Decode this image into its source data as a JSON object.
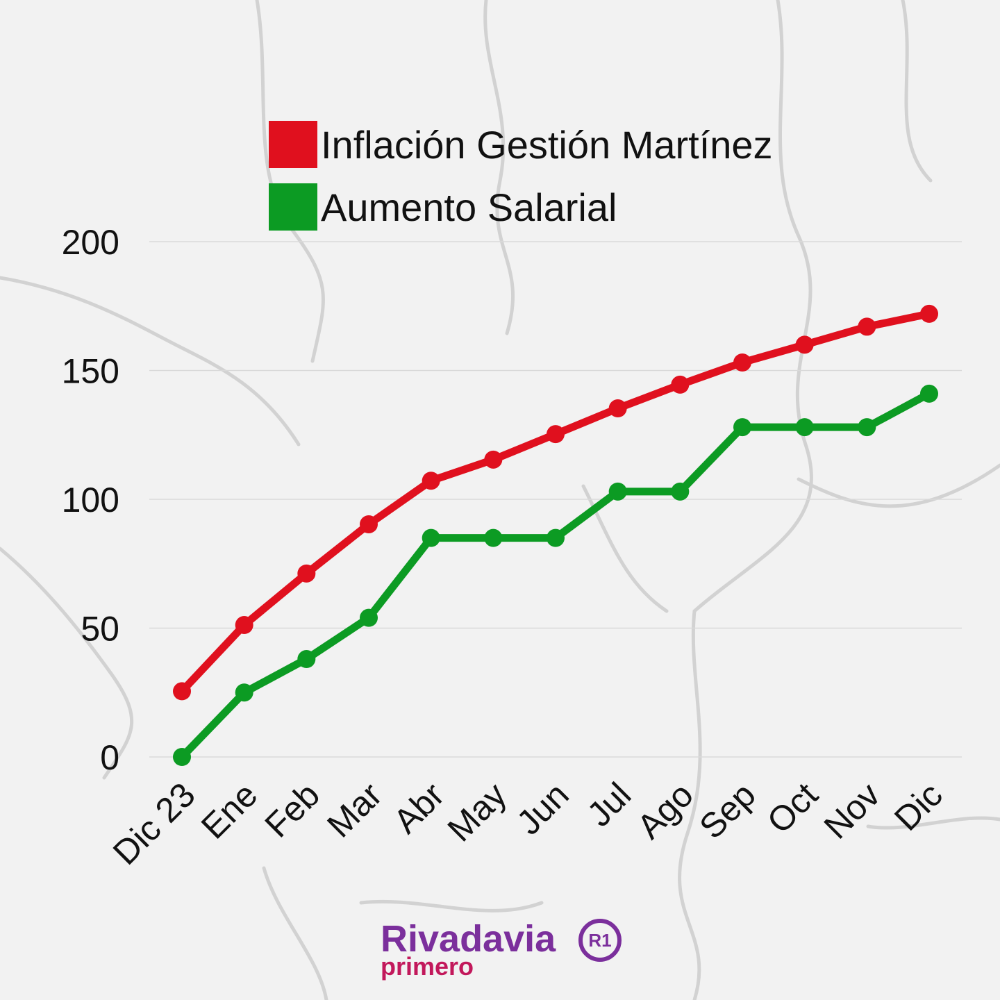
{
  "chart_data": {
    "type": "line",
    "categories": [
      "Dic 23",
      "Ene",
      "Feb",
      "Mar",
      "Abr",
      "May",
      "Jun",
      "Jul",
      "Ago",
      "Sep",
      "Oct",
      "Nov",
      "Dic"
    ],
    "series": [
      {
        "name": "Inflación Gestión Martínez",
        "color": "#e0101e",
        "values": [
          25.5,
          51.2,
          71.2,
          90.3,
          107.2,
          115.4,
          125.3,
          135.3,
          144.5,
          153.1,
          160.0,
          167.0,
          172.0
        ]
      },
      {
        "name": "Aumento Salarial",
        "color": "#0c9b23",
        "values": [
          0,
          25,
          38,
          54,
          85,
          85,
          85,
          103,
          103,
          128,
          128,
          128,
          141
        ]
      }
    ],
    "ylim": [
      0,
      200
    ],
    "yticks": [
      0,
      50,
      100,
      150,
      200
    ],
    "grid": true,
    "legend_position": "top",
    "xlabel": "",
    "ylabel": ""
  },
  "logo": {
    "main": "Rivadavia",
    "sub": "primero",
    "badge": "R1",
    "main_color": "#7b2f9c",
    "sub_color": "#c2185b"
  }
}
